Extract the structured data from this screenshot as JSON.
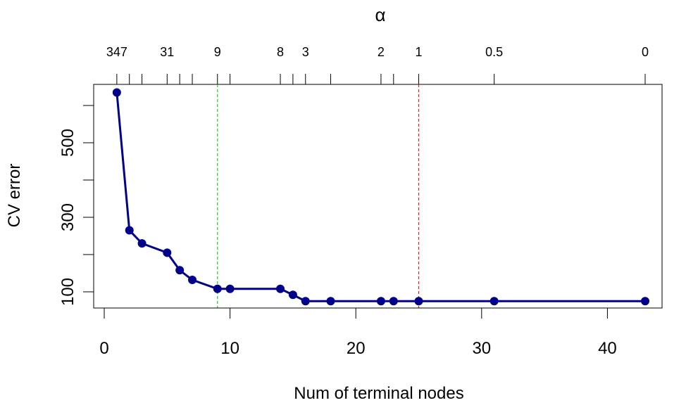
{
  "chart_data": {
    "type": "line",
    "title": "",
    "xlabel": "Num of terminal nodes",
    "ylabel": "CV error",
    "top_axis_label": "α",
    "xlim": [
      0,
      44
    ],
    "ylim": [
      60,
      640
    ],
    "x_ticks": [
      0,
      10,
      20,
      30,
      40
    ],
    "y_ticks": [
      100,
      200,
      300,
      400,
      500,
      600
    ],
    "y_tick_labels_shown": [
      100,
      300,
      500
    ],
    "grid": false,
    "legend": "none",
    "series": [
      {
        "color": "#00008B",
        "x": [
          1,
          2,
          3,
          5,
          6,
          7,
          9,
          10,
          14,
          15,
          16,
          18,
          22,
          23,
          25,
          31,
          43
        ],
        "y": [
          635,
          265,
          230,
          205,
          158,
          132,
          108,
          108,
          108,
          92,
          75,
          75,
          75,
          75,
          75,
          75,
          75
        ]
      }
    ],
    "top_axis": {
      "tick_positions": [
        1,
        2,
        3,
        5,
        6,
        7,
        9,
        10,
        14,
        15,
        16,
        18,
        22,
        23,
        25,
        31,
        43
      ],
      "labels": [
        {
          "x": 1,
          "text": "347"
        },
        {
          "x": 5,
          "text": "31"
        },
        {
          "x": 9,
          "text": "9"
        },
        {
          "x": 14,
          "text": "8"
        },
        {
          "x": 16,
          "text": "3"
        },
        {
          "x": 22,
          "text": "2"
        },
        {
          "x": 25,
          "text": "1"
        },
        {
          "x": 31,
          "text": "0.5"
        },
        {
          "x": 43,
          "text": "0"
        }
      ]
    },
    "reference_lines": [
      {
        "x": 9,
        "color": "#22CC22"
      },
      {
        "x": 25,
        "color": "#DD2222"
      }
    ]
  }
}
